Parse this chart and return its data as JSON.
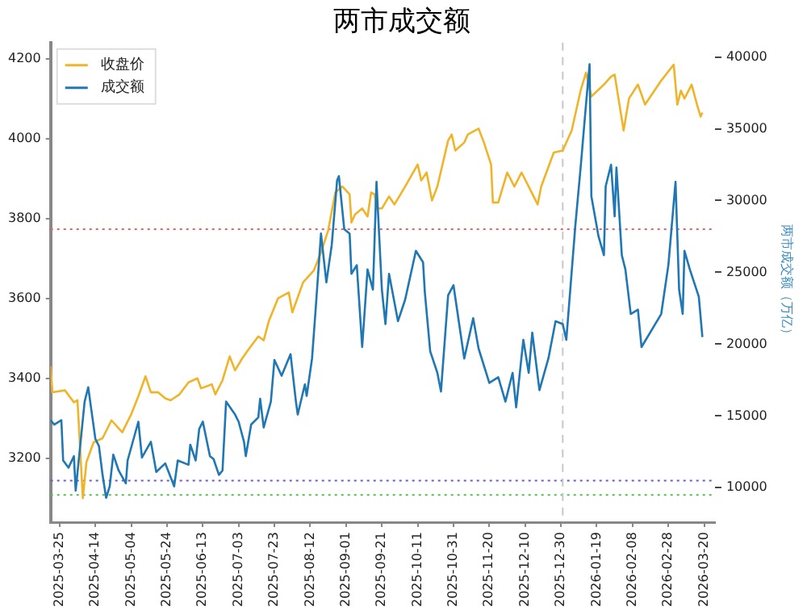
{
  "chart_data": {
    "type": "line",
    "title": "两市成交额",
    "y2label": "两市成交额（万亿）",
    "xlim": [
      "2025-03-20",
      "2026-03-26"
    ],
    "xticks": [
      "2025-03-25",
      "2025-04-14",
      "2025-05-04",
      "2025-05-24",
      "2025-06-13",
      "2025-07-03",
      "2025-07-23",
      "2025-08-12",
      "2025-09-01",
      "2025-09-21",
      "2025-10-11",
      "2025-10-31",
      "2025-11-20",
      "2025-12-10",
      "2025-12-30",
      "2026-01-19",
      "2026-02-08",
      "2026-02-28",
      "2026-03-20"
    ],
    "ylim": [
      3040,
      4240
    ],
    "yticks": [
      3200,
      3400,
      3600,
      3800,
      4000,
      4200
    ],
    "y2lim": [
      7600,
      41000
    ],
    "y2ticks": [
      10000,
      15000,
      20000,
      25000,
      30000,
      35000,
      40000
    ],
    "legend": "top left",
    "grid": false,
    "marker": "none",
    "line_style": "solid",
    "series": [
      {
        "name": "收盘价",
        "color": "#f0b429",
        "axis": "y",
        "x": [
          "2025-03-20",
          "2025-03-21",
          "2025-03-28",
          "2025-04-02",
          "2025-04-04",
          "2025-04-07",
          "2025-04-09",
          "2025-04-13",
          "2025-04-18",
          "2025-04-23",
          "2025-04-29",
          "2025-05-04",
          "2025-05-08",
          "2025-05-12",
          "2025-05-15",
          "2025-05-19",
          "2025-05-23",
          "2025-05-26",
          "2025-05-31",
          "2025-06-05",
          "2025-06-10",
          "2025-06-12",
          "2025-06-18",
          "2025-06-20",
          "2025-06-24",
          "2025-06-28",
          "2025-07-01",
          "2025-07-05",
          "2025-07-09",
          "2025-07-14",
          "2025-07-17",
          "2025-07-20",
          "2025-07-25",
          "2025-07-31",
          "2025-08-02",
          "2025-08-08",
          "2025-08-14",
          "2025-08-18",
          "2025-08-22",
          "2025-08-26",
          "2025-08-30",
          "2025-09-03",
          "2025-09-04",
          "2025-09-06",
          "2025-09-10",
          "2025-09-13",
          "2025-09-15",
          "2025-09-17",
          "2025-09-18",
          "2025-09-21",
          "2025-09-25",
          "2025-09-28",
          "2025-10-04",
          "2025-10-11",
          "2025-10-13",
          "2025-10-16",
          "2025-10-19",
          "2025-10-22",
          "2025-10-28",
          "2025-10-30",
          "2025-11-01",
          "2025-11-06",
          "2025-11-08",
          "2025-11-14",
          "2025-11-17",
          "2025-11-21",
          "2025-11-22",
          "2025-11-25",
          "2025-11-30",
          "2025-12-04",
          "2025-12-08",
          "2025-12-12",
          "2025-12-17",
          "2025-12-19",
          "2025-12-26",
          "2025-12-31",
          "2026-01-05",
          "2026-01-10",
          "2026-01-13",
          "2026-01-16",
          "2026-01-23",
          "2026-01-27",
          "2026-01-29",
          "2026-02-03",
          "2026-02-06",
          "2026-02-11",
          "2026-02-15",
          "2026-02-24",
          "2026-03-03",
          "2026-03-05",
          "2026-03-07",
          "2026-03-09",
          "2026-03-13",
          "2026-03-16",
          "2026-03-18",
          "2026-03-19"
        ],
        "values": [
          3430,
          3365,
          3370,
          3340,
          3345,
          3100,
          3190,
          3240,
          3250,
          3295,
          3265,
          3310,
          3355,
          3405,
          3365,
          3365,
          3350,
          3345,
          3360,
          3390,
          3400,
          3375,
          3385,
          3360,
          3395,
          3455,
          3420,
          3450,
          3475,
          3505,
          3495,
          3545,
          3600,
          3615,
          3565,
          3640,
          3670,
          3715,
          3770,
          3865,
          3880,
          3860,
          3790,
          3810,
          3825,
          3805,
          3865,
          3860,
          3825,
          3825,
          3855,
          3835,
          3880,
          3935,
          3895,
          3915,
          3845,
          3880,
          3995,
          4010,
          3970,
          3990,
          4010,
          4025,
          3990,
          3935,
          3840,
          3840,
          3915,
          3880,
          3915,
          3880,
          3835,
          3880,
          3965,
          3970,
          4020,
          4120,
          4165,
          4105,
          4135,
          4155,
          4160,
          4020,
          4100,
          4135,
          4085,
          4145,
          4185,
          4085,
          4120,
          4100,
          4135,
          4085,
          4055,
          4065
        ]
      },
      {
        "name": "成交额",
        "color": "#1f77b4",
        "axis": "y2",
        "x": [
          "2025-03-20",
          "2025-03-22",
          "2025-03-26",
          "2025-03-27",
          "2025-03-30",
          "2025-04-02",
          "2025-04-03",
          "2025-04-08",
          "2025-04-10",
          "2025-04-14",
          "2025-04-16",
          "2025-04-18",
          "2025-04-20",
          "2025-04-22",
          "2025-04-24",
          "2025-04-27",
          "2025-05-01",
          "2025-05-02",
          "2025-05-08",
          "2025-05-10",
          "2025-05-15",
          "2025-05-18",
          "2025-05-23",
          "2025-05-28",
          "2025-05-30",
          "2025-06-05",
          "2025-06-06",
          "2025-06-09",
          "2025-06-11",
          "2025-06-13",
          "2025-06-17",
          "2025-06-19",
          "2025-06-22",
          "2025-06-24",
          "2025-06-26",
          "2025-07-01",
          "2025-07-03",
          "2025-07-06",
          "2025-07-07",
          "2025-07-10",
          "2025-07-14",
          "2025-07-15",
          "2025-07-17",
          "2025-07-21",
          "2025-07-23",
          "2025-07-27",
          "2025-08-01",
          "2025-08-04",
          "2025-08-05",
          "2025-08-09",
          "2025-08-10",
          "2025-08-13",
          "2025-08-15",
          "2025-08-18",
          "2025-08-21",
          "2025-08-24",
          "2025-08-27",
          "2025-08-28",
          "2025-08-31",
          "2025-09-03",
          "2025-09-04",
          "2025-09-07",
          "2025-09-10",
          "2025-09-13",
          "2025-09-16",
          "2025-09-18",
          "2025-09-21",
          "2025-09-23",
          "2025-09-25",
          "2025-09-30",
          "2025-10-04",
          "2025-10-10",
          "2025-10-14",
          "2025-10-15",
          "2025-10-18",
          "2025-10-22",
          "2025-10-24",
          "2025-10-28",
          "2025-10-31",
          "2025-11-06",
          "2025-11-11",
          "2025-11-14",
          "2025-11-20",
          "2025-11-25",
          "2025-11-29",
          "2025-12-03",
          "2025-12-05",
          "2025-12-09",
          "2025-12-12",
          "2025-12-14",
          "2025-12-18",
          "2025-12-23",
          "2025-12-27",
          "2025-12-31",
          "2026-01-02",
          "2026-01-07",
          "2026-01-10",
          "2026-01-13",
          "2026-01-15",
          "2026-01-16",
          "2026-01-20",
          "2026-01-23",
          "2026-01-24",
          "2026-01-27",
          "2026-01-29",
          "2026-01-30",
          "2026-02-02",
          "2026-02-04",
          "2026-02-07",
          "2026-02-11",
          "2026-02-13",
          "2026-02-24",
          "2026-02-28",
          "2026-03-04",
          "2026-03-06",
          "2026-03-08",
          "2026-03-09",
          "2026-03-12",
          "2026-03-17",
          "2026-03-19"
        ],
        "values": [
          14700,
          14400,
          14700,
          11900,
          11400,
          12200,
          9800,
          16000,
          17000,
          13400,
          12900,
          10900,
          9300,
          10100,
          12300,
          11200,
          10300,
          11900,
          14600,
          12100,
          13200,
          11100,
          11700,
          10100,
          11900,
          11600,
          13000,
          11900,
          14100,
          14600,
          12200,
          12000,
          10900,
          11200,
          16000,
          15100,
          14600,
          13200,
          12200,
          14400,
          14900,
          16200,
          14200,
          16000,
          18900,
          17800,
          19300,
          16000,
          15100,
          17200,
          16400,
          19000,
          22400,
          27700,
          24300,
          26900,
          31400,
          31700,
          28000,
          27700,
          24900,
          25500,
          19800,
          25200,
          23800,
          31300,
          23800,
          21400,
          24900,
          21600,
          23100,
          26500,
          25700,
          23600,
          19500,
          18000,
          16700,
          23400,
          24100,
          19000,
          21800,
          19700,
          17300,
          17700,
          16000,
          18000,
          15600,
          20300,
          18000,
          20800,
          16800,
          19000,
          21600,
          21400,
          20300,
          28200,
          32300,
          36700,
          39500,
          30300,
          27500,
          26200,
          31000,
          32500,
          28900,
          32300,
          26200,
          25200,
          22100,
          22400,
          19800,
          22100,
          25500,
          31300,
          23800,
          22100,
          26500,
          25200,
          23300,
          20500
        ]
      }
    ],
    "ref_lines": [
      {
        "axis": "y2",
        "value": 28000,
        "color": "#e06666",
        "line_style": "dotted"
      },
      {
        "axis": "y2",
        "value": 10500,
        "color": "#6a5acd",
        "line_style": "dotted"
      },
      {
        "axis": "y2",
        "value": 9500,
        "color": "#5cb85c",
        "line_style": "dotted"
      },
      {
        "axis": "x",
        "value": "2025-12-31",
        "color": "#c8c8c8",
        "line_style": "dashed"
      }
    ]
  }
}
